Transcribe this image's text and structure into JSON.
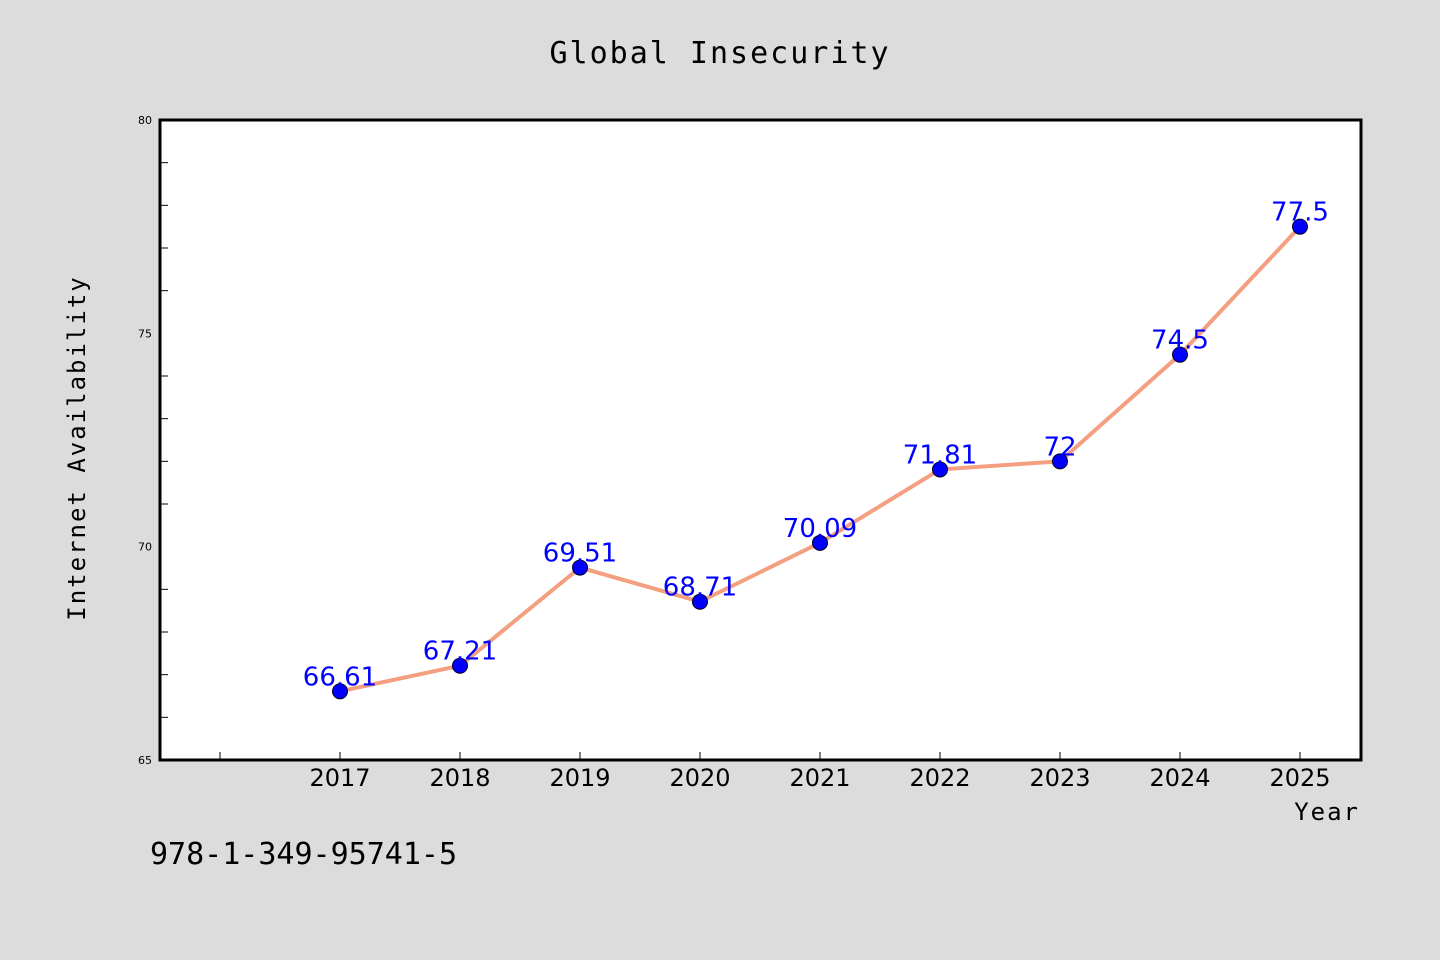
{
  "chart_data": {
    "type": "line",
    "title": "Global Insecurity",
    "xlabel": "Year",
    "ylabel": "Internet Availability",
    "categories": [
      "2017",
      "2018",
      "2019",
      "2020",
      "2021",
      "2022",
      "2023",
      "2024",
      "2025"
    ],
    "series": [
      {
        "values": [
          66.61,
          67.21,
          69.51,
          68.71,
          70.09,
          71.81,
          72,
          74.5,
          77.5
        ],
        "labels": [
          "66.61",
          "67.21",
          "69.51",
          "68.71",
          "70.09",
          "71.81",
          "72",
          "74.5",
          "77.5"
        ],
        "line_color": "#f4a080",
        "marker_color": "#0000ff",
        "label_color": "#0000ff"
      }
    ],
    "ylim": [
      65,
      80
    ],
    "yticks": [
      "65",
      "70",
      "75",
      "80"
    ],
    "grid": false,
    "legend": "none"
  },
  "footnote": "978-1-349-95741-5",
  "colors": {
    "background": "#dcdcdc",
    "plot_background": "#ffffff"
  }
}
